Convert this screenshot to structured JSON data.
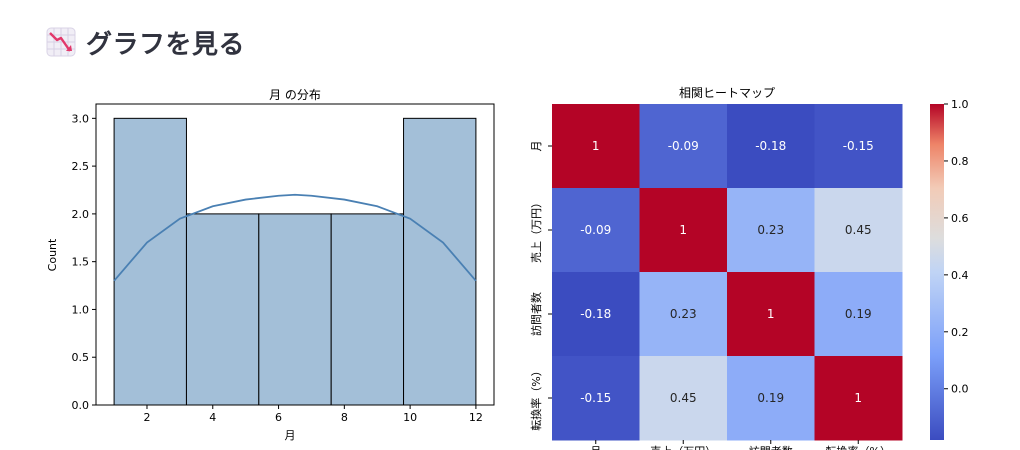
{
  "header": {
    "title": "グラフを見る",
    "icon": "chart-decreasing-icon"
  },
  "colors": {
    "bar_fill": "#a3bfd8",
    "bar_edge": "#000000",
    "kde_line": "#4a80b3"
  },
  "chart_data": [
    {
      "type": "bar",
      "subtype": "histogram-with-kde",
      "title": "月 の分布",
      "xlabel": "月",
      "ylabel": "Count",
      "bins": [
        [
          1,
          3.2
        ],
        [
          3.2,
          5.4
        ],
        [
          5.4,
          7.6
        ],
        [
          7.6,
          9.8
        ],
        [
          9.8,
          12
        ]
      ],
      "values": [
        3,
        2,
        2,
        2,
        3
      ],
      "xlim": [
        0.45,
        12.55
      ],
      "ylim": [
        0,
        3.15
      ],
      "xticks": [
        2,
        4,
        6,
        8,
        10,
        12
      ],
      "yticks": [
        0.0,
        0.5,
        1.0,
        1.5,
        2.0,
        2.5,
        3.0
      ],
      "kde": {
        "x": [
          1,
          2,
          3,
          4,
          5,
          6,
          6.5,
          7,
          8,
          9,
          10,
          11,
          12
        ],
        "y": [
          1.3,
          1.7,
          1.95,
          2.08,
          2.15,
          2.19,
          2.2,
          2.19,
          2.15,
          2.08,
          1.95,
          1.7,
          1.3
        ]
      },
      "grid": false
    },
    {
      "type": "heatmap",
      "title": "相関ヒートマップ",
      "labels": [
        "月",
        "売上（万円）",
        "訪問者数",
        "転換率（%）"
      ],
      "values": [
        [
          1,
          -0.09,
          -0.18,
          -0.15
        ],
        [
          -0.09,
          1,
          0.23,
          0.45
        ],
        [
          -0.18,
          0.23,
          1,
          0.19
        ],
        [
          -0.15,
          0.45,
          0.19,
          1
        ]
      ],
      "colormap": "coolwarm",
      "vmin": -0.18,
      "vmax": 1.0,
      "colorbar_ticks": [
        0.0,
        0.2,
        0.4,
        0.6,
        0.8,
        1.0
      ]
    }
  ]
}
